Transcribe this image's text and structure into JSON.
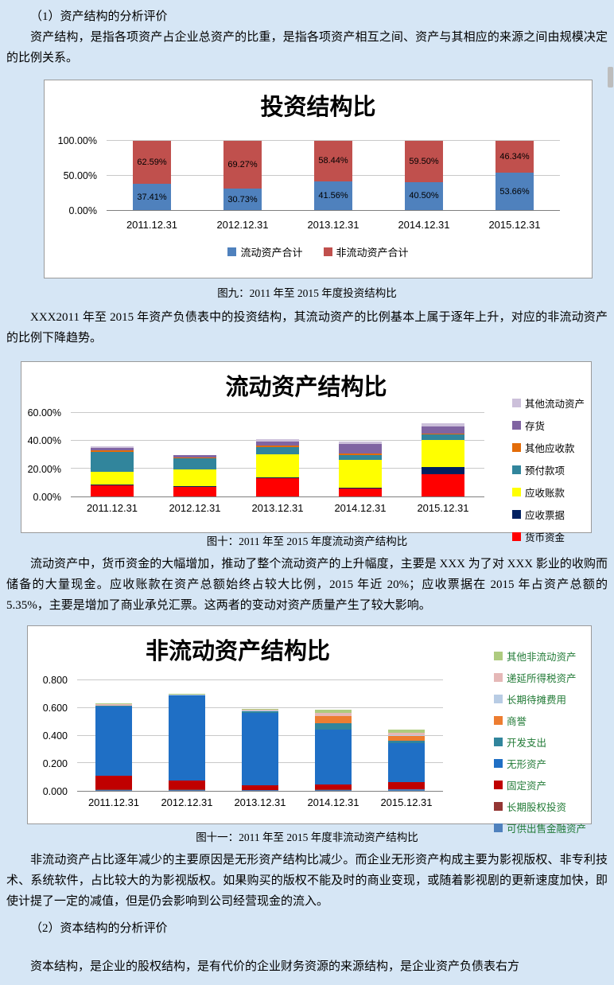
{
  "page": {
    "background": "#d6e6f5",
    "text_color": "#000000"
  },
  "paragraphs": {
    "h1": "（1）资产结构的分析评价",
    "p1": "资产结构，是指各项资产占企业总资产的比重，是指各项资产相互之间、资产与其相应的来源之间由规模决定的比例关系。",
    "caption9": "图九：2011 年至 2015 年度投资结构比",
    "p2": "XXX2011 年至 2015 年资产负债表中的投资结构，其流动资产的比例基本上属于逐年上升，对应的非流动资产的比例下降趋势。",
    "caption10": "图十：2011 年至 2015 年度流动资产结构比",
    "p3": "流动资产中，货币资金的大幅增加，推动了整个流动资产的上升幅度，主要是 XXX 为了对 XXX 影业的收购而储备的大量现金。应收账款在资产总额始终占较大比例，2015 年近 20%；应收票据在 2015 年占资产总额的 5.35%，主要是增加了商业承兑汇票。这两者的变动对资产质量产生了较大影响。",
    "caption11": "图十一：2011 年至 2015 年度非流动资产结构比",
    "p4": "非流动资产占比逐年减少的主要原因是无形资产结构比减少。而企业无形资产构成主要为影视版权、非专利技术、系统软件，占比较大的为影视版权。如果购买的版权不能及时的商业变现，或随着影视剧的更新速度加快，即使计提了一定的减值，但是仍会影响到公司经营现金的流入。",
    "h2": "（2）资本结构的分析评价",
    "p5": "资本结构，是企业的股权结构，是有代价的企业财务资源的来源结构，是企业资产负债表右方"
  },
  "chart_data": [
    {
      "type": "bar",
      "stacked": true,
      "title": "投资结构比",
      "categories": [
        "2011.12.31",
        "2012.12.31",
        "2013.12.31",
        "2014.12.31",
        "2015.12.31"
      ],
      "ymax": 100,
      "yticks": [
        {
          "label": "0.00%",
          "value": 0
        },
        {
          "label": "50.00%",
          "value": 50
        },
        {
          "label": "100.00%",
          "value": 100
        }
      ],
      "legend_position": "bottom",
      "legend_reversed": false,
      "show_data_labels": true,
      "series": [
        {
          "name": "流动资产合计",
          "color": "#4f81bd",
          "values": [
            37.41,
            30.73,
            41.56,
            40.5,
            53.66
          ],
          "labels": [
            "37.41%",
            "30.73%",
            "41.56%",
            "40.50%",
            "53.66%"
          ]
        },
        {
          "name": "非流动资产合计",
          "color": "#c0504d",
          "values": [
            62.59,
            69.27,
            58.44,
            59.5,
            46.34
          ],
          "labels": [
            "62.59%",
            "69.27%",
            "58.44%",
            "59.50%",
            "46.34%"
          ]
        }
      ]
    },
    {
      "type": "bar",
      "stacked": true,
      "title": "流动资产结构比",
      "categories": [
        "2011.12.31",
        "2012.12.31",
        "2013.12.31",
        "2014.12.31",
        "2015.12.31"
      ],
      "ymax": 60,
      "yticks": [
        {
          "label": "0.00%",
          "value": 0
        },
        {
          "label": "20.00%",
          "value": 20
        },
        {
          "label": "40.00%",
          "value": 40
        },
        {
          "label": "60.00%",
          "value": 60
        }
      ],
      "legend_position": "right",
      "legend_reversed": true,
      "show_data_labels": false,
      "series": [
        {
          "name": "货币资金",
          "color": "#ff0000",
          "values": [
            8.0,
            7.0,
            13.0,
            6.0,
            16.0
          ]
        },
        {
          "name": "应收票据",
          "color": "#002060",
          "values": [
            0.4,
            0.3,
            0.7,
            0.5,
            5.35
          ]
        },
        {
          "name": "应收账款",
          "color": "#ffff00",
          "values": [
            9.5,
            12.0,
            16.5,
            20.0,
            19.5
          ]
        },
        {
          "name": "预付款项",
          "color": "#31859c",
          "values": [
            14.0,
            8.0,
            5.5,
            3.5,
            3.5
          ]
        },
        {
          "name": "其他应收款",
          "color": "#e36c09",
          "values": [
            1.0,
            0.8,
            0.8,
            0.8,
            0.8
          ]
        },
        {
          "name": "存货",
          "color": "#8064a2",
          "values": [
            2.0,
            1.4,
            3.0,
            7.0,
            5.0
          ]
        },
        {
          "name": "其他流动资产",
          "color": "#ccc0da",
          "values": [
            1.1,
            0.5,
            1.5,
            1.7,
            2.5
          ]
        }
      ]
    },
    {
      "type": "bar",
      "stacked": true,
      "title": "非流动资产结构比",
      "categories": [
        "2011.12.31",
        "2012.12.31",
        "2013.12.31",
        "2014.12.31",
        "2015.12.31"
      ],
      "ymax": 0.8,
      "yticks": [
        {
          "label": "0.000",
          "value": 0
        },
        {
          "label": "0.200",
          "value": 0.2
        },
        {
          "label": "0.400",
          "value": 0.4
        },
        {
          "label": "0.600",
          "value": 0.6
        },
        {
          "label": "0.800",
          "value": 0.8
        }
      ],
      "legend_position": "right",
      "legend_reversed": true,
      "legend_text_color": "#217a36",
      "show_data_labels": false,
      "series": [
        {
          "name": "可供出售金融资产",
          "color": "#4f81bd",
          "values": [
            0.004,
            0.004,
            0.004,
            0.005,
            0.01
          ]
        },
        {
          "name": "长期股权投资",
          "color": "#943634",
          "values": [
            0.006,
            0.005,
            0.004,
            0.004,
            0.004
          ]
        },
        {
          "name": "固定资产",
          "color": "#c00000",
          "values": [
            0.1,
            0.065,
            0.035,
            0.035,
            0.05
          ]
        },
        {
          "name": "无形资产",
          "color": "#1f6fc5",
          "values": [
            0.5,
            0.615,
            0.52,
            0.4,
            0.28
          ]
        },
        {
          "name": "开发支出",
          "color": "#31859c",
          "values": [
            0.004,
            0.004,
            0.01,
            0.045,
            0.02
          ]
        },
        {
          "name": "商誉",
          "color": "#ed7d31",
          "values": [
            0.0,
            0.0,
            0.004,
            0.05,
            0.035
          ]
        },
        {
          "name": "长期待摊费用",
          "color": "#b8cce4",
          "values": [
            0.003,
            0.002,
            0.003,
            0.004,
            0.004
          ]
        },
        {
          "name": "递延所得税资产",
          "color": "#e5b8b7",
          "values": [
            0.01,
            0.004,
            0.01,
            0.02,
            0.015
          ]
        },
        {
          "name": "其他非流动资产",
          "color": "#aecb7f",
          "values": [
            0.006,
            0.004,
            0.005,
            0.025,
            0.028
          ]
        }
      ]
    }
  ]
}
